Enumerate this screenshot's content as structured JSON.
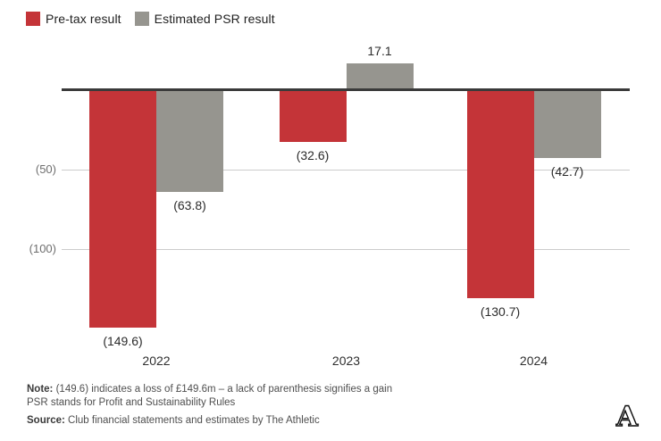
{
  "legend": {
    "items": [
      {
        "label": "Pre-tax result",
        "color": "#c43438"
      },
      {
        "label": "Estimated PSR result",
        "color": "#96958f"
      }
    ]
  },
  "chart_data": {
    "type": "bar",
    "title": "",
    "xlabel": "",
    "ylabel": "",
    "categories": [
      "2022",
      "2023",
      "2024"
    ],
    "series": [
      {
        "name": "Pre-tax result",
        "color": "#c43438",
        "values": [
          -149.6,
          -32.6,
          -130.7
        ],
        "labels": [
          "(149.6)",
          "(32.6)",
          "(130.7)"
        ]
      },
      {
        "name": "Estimated PSR result",
        "color": "#96958f",
        "values": [
          -63.8,
          17.1,
          -42.7
        ],
        "labels": [
          "(63.8)",
          "17.1",
          "(42.7)"
        ]
      }
    ],
    "yticks": [
      {
        "value": -50,
        "label": "(50)"
      },
      {
        "value": -100,
        "label": "(100)"
      }
    ],
    "ylim": [
      -160,
      25
    ],
    "grid": true,
    "legend_position": "top-left",
    "negative_format": "parentheses"
  },
  "footer": {
    "note_label": "Note:",
    "note_line1": "(149.6) indicates a loss of £149.6m – a lack of parenthesis signifies a gain",
    "note_line2": "PSR stands for Profit and Sustainability Rules",
    "source_label": "Source:",
    "source_text": "Club financial statements and estimates by The Athletic",
    "logo_icon": "athletic-a-logo"
  }
}
